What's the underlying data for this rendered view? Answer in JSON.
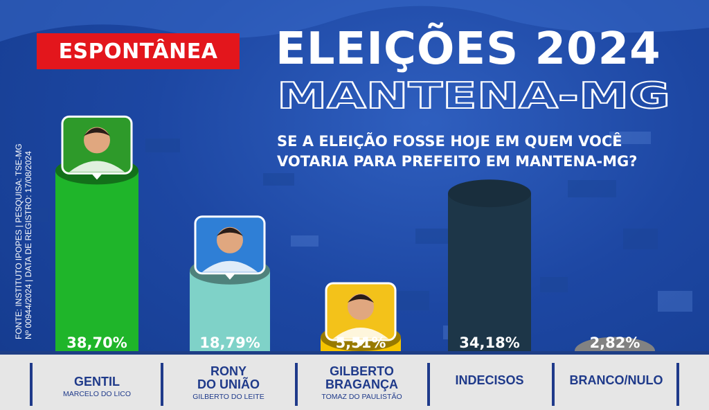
{
  "header": {
    "tag": "ESPONTÂNEA",
    "title": "ELEIÇÕES 2024",
    "subtitle": "MANTENA-MG",
    "question_line1": "SE A ELEIÇÃO FOSSE HOJE EM QUEM VOCÊ",
    "question_line2": "VOTARIA PARA PREFEITO EM MANTENA-MG?"
  },
  "source": {
    "line1": "FONTE: INSTITUTO IPOPES | PESQUISA: TSE-MG",
    "line2": "Nº 00944/2024 | DATA DE REGISTRO: 17/08/2024"
  },
  "candidates": [
    {
      "name1": "GENTIL",
      "vice": "MARCELO DO LICO"
    },
    {
      "name1": "RONY",
      "name2": "DO UNIÃO",
      "vice": "GILBERTO DO LEITE"
    },
    {
      "name1": "GILBERTO",
      "name2": "BRAGANÇA",
      "vice": "TOMAZ DO PAULISTÃO"
    },
    {
      "name1": "INDECISOS"
    },
    {
      "name1": "BRANCO/NULO"
    }
  ],
  "chart_data": {
    "type": "bar",
    "categories": [
      "GENTIL",
      "RONY DO UNIÃO",
      "GILBERTO BRAGANÇA",
      "INDECISOS",
      "BRANCO/NULO"
    ],
    "values": [
      38.7,
      18.79,
      5.51,
      34.18,
      2.82
    ],
    "value_labels": [
      "38,70%",
      "18,79%",
      "5,51%",
      "34,18%",
      "2,82%"
    ],
    "colors": [
      "#1fb52a",
      "#7fd2c8",
      "#f5c400",
      "#1d3648",
      "#d2d2d2"
    ],
    "photo_colors": [
      "#2e9a2a",
      "#2f7fd6",
      "#f3c21a",
      null,
      null
    ],
    "ylim": [
      0,
      40
    ]
  }
}
